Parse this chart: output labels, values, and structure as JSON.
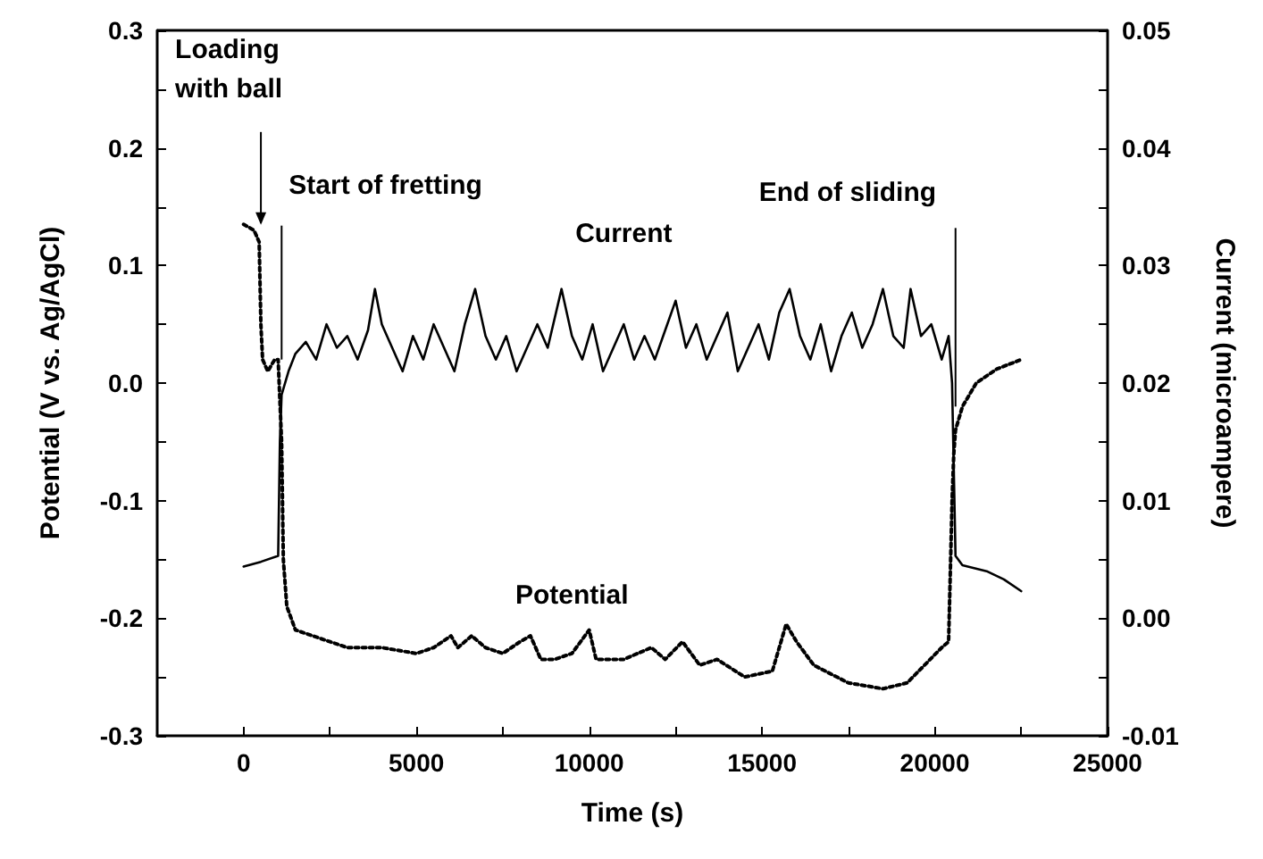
{
  "chart_data": {
    "type": "line",
    "xlabel": "Time (s)",
    "ylabel": "Potential (V vs. Ag/AgCl)",
    "y2label": "Current (microampere)",
    "xlim": [
      -2500,
      25000
    ],
    "xticks": [
      0,
      {
        "value": 2500,
        "label": null
      },
      5000,
      {
        "value": 7500,
        "label": null
      },
      10000,
      {
        "value": 12500,
        "label": null
      },
      15000,
      {
        "value": 17500,
        "label": null
      },
      20000,
      {
        "value": 22500,
        "label": null
      },
      25000
    ],
    "ylim": [
      -0.3,
      0.3
    ],
    "yticks": [
      -0.3,
      {
        "value": -0.25,
        "label": null
      },
      -0.2,
      {
        "value": -0.15,
        "label": null
      },
      -0.1,
      {
        "value": -0.05,
        "label": null
      },
      {
        "value": 0,
        "label": "0.0"
      },
      {
        "value": 0.05,
        "label": null
      },
      0.1,
      {
        "value": 0.15,
        "label": null
      },
      0.2,
      {
        "value": 0.25,
        "label": null
      },
      0.3
    ],
    "y2lim": [
      -0.01,
      0.05
    ],
    "y2ticks": [
      -0.01,
      {
        "value": -0.005,
        "label": null
      },
      {
        "value": 0,
        "label": "0.00"
      },
      {
        "value": 0.005,
        "label": null
      },
      0.01,
      {
        "value": 0.015,
        "label": null
      },
      0.02,
      {
        "value": 0.025,
        "label": null
      },
      0.03,
      {
        "value": 0.035,
        "label": null
      },
      0.04,
      {
        "value": 0.045,
        "label": null
      },
      0.05
    ],
    "grid": false,
    "legend": false,
    "annotations": [
      {
        "text": "Loading\nwith ball",
        "x": 500,
        "y": 0.13
      },
      {
        "text": "Start of fretting",
        "x": 1100,
        "y": 0.02
      },
      {
        "text": "End of sliding",
        "x": 20600,
        "y": -0.02
      }
    ],
    "series": [
      {
        "name": "Current",
        "color": "#000000",
        "axis": "y2",
        "line_style": "solid",
        "marker": "none",
        "x": [
          0,
          500,
          1000,
          1050,
          1100,
          1300,
          1500,
          1800,
          2100,
          2400,
          2700,
          3000,
          3300,
          3600,
          3800,
          4000,
          4300,
          4600,
          4900,
          5200,
          5500,
          5800,
          6100,
          6400,
          6700,
          7000,
          7300,
          7600,
          7900,
          8200,
          8500,
          8800,
          9200,
          9500,
          9800,
          10100,
          10400,
          10700,
          11000,
          11300,
          11600,
          11900,
          12200,
          12500,
          12800,
          13100,
          13400,
          13700,
          14000,
          14300,
          14600,
          14900,
          15200,
          15500,
          15800,
          16100,
          16400,
          16700,
          17000,
          17300,
          17600,
          17900,
          18200,
          18500,
          18800,
          19100,
          19300,
          19600,
          19900,
          20200,
          20400,
          20500,
          20600,
          20800,
          21500,
          22000,
          22500
        ],
        "values": [
          0.0044,
          0.0048,
          0.0053,
          0.015,
          0.019,
          0.021,
          0.0225,
          0.0235,
          0.022,
          0.025,
          0.023,
          0.024,
          0.022,
          0.0245,
          0.028,
          0.025,
          0.023,
          0.021,
          0.024,
          0.022,
          0.025,
          0.023,
          0.021,
          0.025,
          0.028,
          0.024,
          0.022,
          0.024,
          0.021,
          0.023,
          0.025,
          0.023,
          0.028,
          0.024,
          0.022,
          0.025,
          0.021,
          0.023,
          0.025,
          0.022,
          0.024,
          0.022,
          0.0245,
          0.027,
          0.023,
          0.025,
          0.022,
          0.024,
          0.026,
          0.021,
          0.023,
          0.025,
          0.022,
          0.026,
          0.028,
          0.024,
          0.022,
          0.025,
          0.021,
          0.024,
          0.026,
          0.023,
          0.025,
          0.028,
          0.024,
          0.023,
          0.028,
          0.024,
          0.025,
          0.022,
          0.024,
          0.02,
          0.0053,
          0.0045,
          0.004,
          0.0033,
          0.0023
        ]
      },
      {
        "name": "Potential",
        "color": "#000000",
        "line_style": "dotted",
        "marker": "none",
        "x": [
          0,
          300,
          450,
          500,
          550,
          700,
          900,
          1000,
          1100,
          1150,
          1250,
          1500,
          2000,
          2500,
          3000,
          4000,
          5000,
          5500,
          6000,
          6200,
          6600,
          7000,
          7500,
          8000,
          8300,
          8600,
          9000,
          9500,
          10000,
          10200,
          11000,
          11800,
          12200,
          12700,
          13200,
          13700,
          14500,
          15300,
          15700,
          16000,
          16500,
          17500,
          18500,
          19200,
          19700,
          20200,
          20400,
          20500,
          20550,
          20600,
          20800,
          21200,
          21800,
          22500
        ],
        "values": [
          0.135,
          0.13,
          0.12,
          0.05,
          0.02,
          0.01,
          0.02,
          0.02,
          -0.05,
          -0.15,
          -0.19,
          -0.21,
          -0.215,
          -0.22,
          -0.225,
          -0.225,
          -0.23,
          -0.225,
          -0.215,
          -0.225,
          -0.215,
          -0.225,
          -0.23,
          -0.22,
          -0.215,
          -0.235,
          -0.235,
          -0.23,
          -0.21,
          -0.235,
          -0.235,
          -0.225,
          -0.235,
          -0.22,
          -0.24,
          -0.235,
          -0.25,
          -0.245,
          -0.205,
          -0.22,
          -0.24,
          -0.255,
          -0.26,
          -0.255,
          -0.24,
          -0.225,
          -0.22,
          -0.1,
          -0.06,
          -0.04,
          -0.02,
          0.0,
          0.012,
          0.02
        ]
      }
    ]
  }
}
